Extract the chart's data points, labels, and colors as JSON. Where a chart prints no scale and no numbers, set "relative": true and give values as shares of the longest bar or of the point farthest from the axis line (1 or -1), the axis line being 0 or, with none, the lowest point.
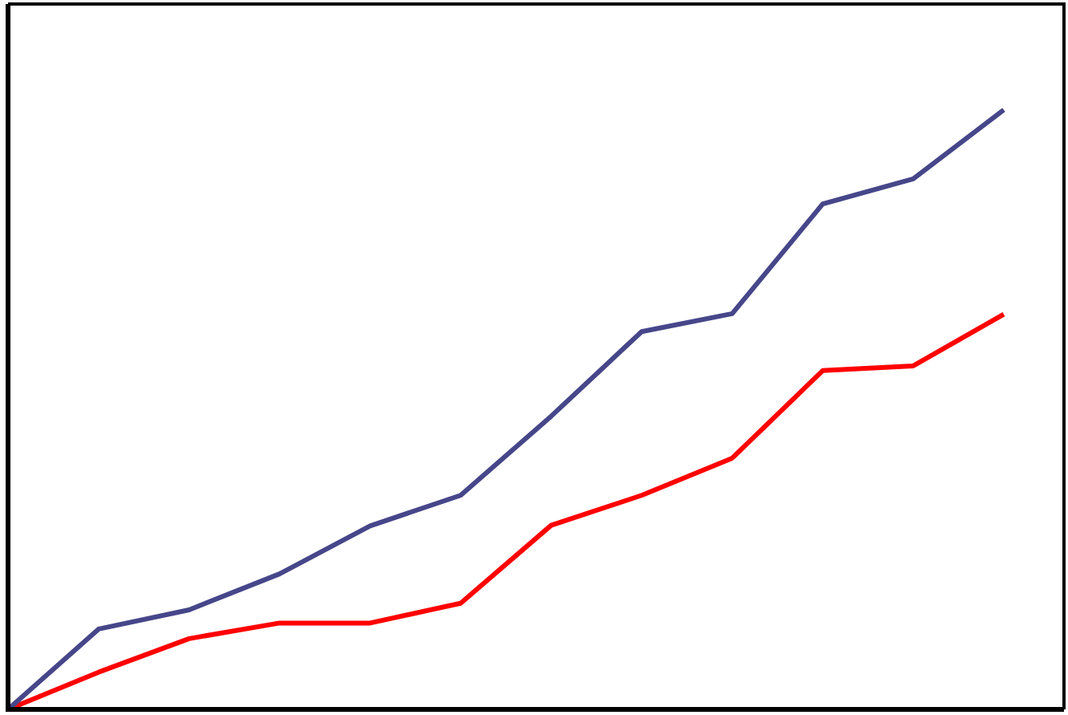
{
  "chart_data": {
    "type": "line",
    "relative": true,
    "categories": [
      null,
      null,
      null,
      null,
      null,
      null,
      null,
      null,
      null,
      null,
      null,
      null
    ],
    "series": [
      {
        "color": "#46468a",
        "values": [
          0,
          0.134,
          0.166,
          0.226,
          0.306,
          0.357,
          0.489,
          0.63,
          0.66,
          0.843,
          0.885,
          1
        ]
      },
      {
        "color": "#ff0000",
        "values": [
          0,
          0.062,
          0.118,
          0.144,
          0.144,
          0.177,
          0.307,
          0.357,
          0.419,
          0.565,
          0.573,
          0.659
        ]
      }
    ],
    "legend": false,
    "grid": false,
    "marker": "none",
    "line_style": "solid"
  }
}
